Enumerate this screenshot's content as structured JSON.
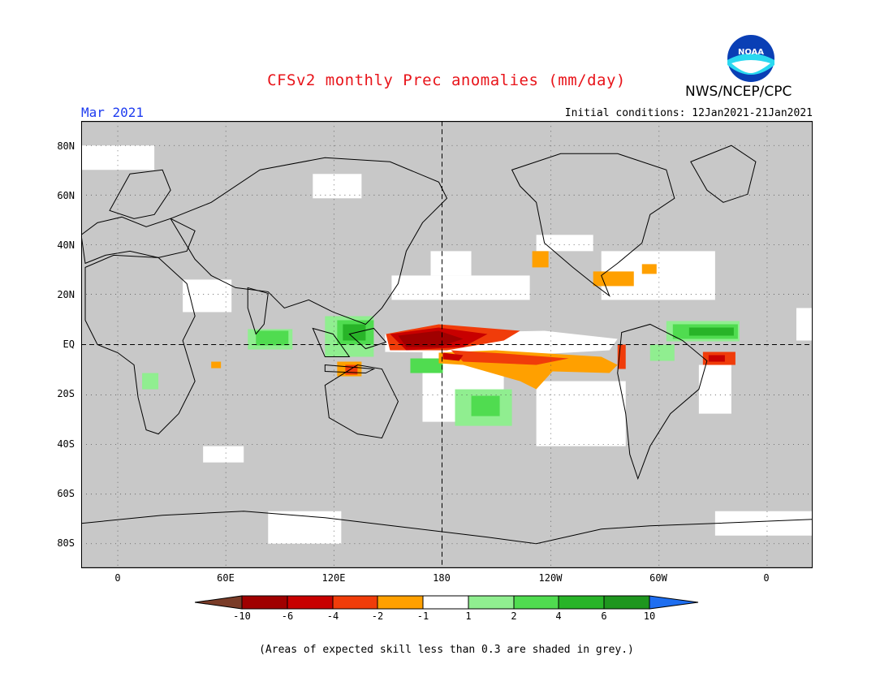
{
  "header": {
    "title": "CFSv2 monthly Prec anomalies (mm/day)",
    "org": "NWS/NCEP/CPC",
    "month": "Mar 2021",
    "initial_conditions": "Initial conditions: 12Jan2021-21Jan2021",
    "logo_text": "NOAA"
  },
  "map": {
    "lat_labels": [
      "80N",
      "60N",
      "40N",
      "20N",
      "EQ",
      "20S",
      "40S",
      "60S",
      "80S"
    ],
    "lon_labels": [
      "0",
      "60E",
      "120E",
      "180",
      "120W",
      "60W",
      "0"
    ],
    "background_color": "#c8c8c8"
  },
  "colorbar": {
    "labels": [
      "-10",
      "-6",
      "-4",
      "-2",
      "-1",
      "1",
      "2",
      "4",
      "6",
      "10"
    ],
    "colors": [
      "#7a3c28",
      "#a00000",
      "#c80000",
      "#f03c0a",
      "#ffa000",
      "#ffffff",
      "#90ee90",
      "#50dc50",
      "#28b428",
      "#1e961e",
      "#1e6ef0"
    ]
  },
  "footer": "(Areas of expected skill less than 0.3 are shaded in grey.)"
}
